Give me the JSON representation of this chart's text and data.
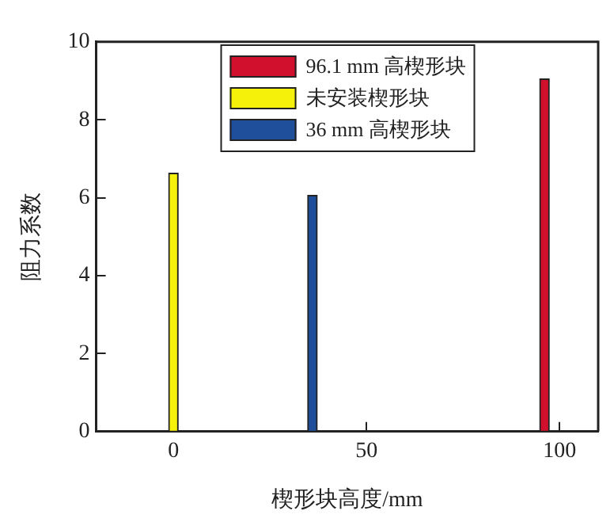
{
  "chart_data": {
    "type": "bar",
    "xlabel": "楔形块高度/mm",
    "ylabel": "阻力系数",
    "xlim": [
      -20,
      110
    ],
    "xticks": [
      0,
      50,
      100
    ],
    "ylim": [
      0,
      10
    ],
    "yticks": [
      0,
      2,
      4,
      6,
      8,
      10
    ],
    "grid": false,
    "legend": "top",
    "series": [
      {
        "name": "96.1 mm 高楔形块",
        "color": "#d0102c",
        "x": [
          96.1
        ],
        "values": [
          9.05
        ]
      },
      {
        "name": "未安装楔形块",
        "color": "#f5f10a",
        "x": [
          0
        ],
        "values": [
          6.63
        ]
      },
      {
        "name": "36 mm 高楔形块",
        "color": "#1f4e9a",
        "x": [
          36
        ],
        "values": [
          6.06
        ]
      }
    ]
  }
}
